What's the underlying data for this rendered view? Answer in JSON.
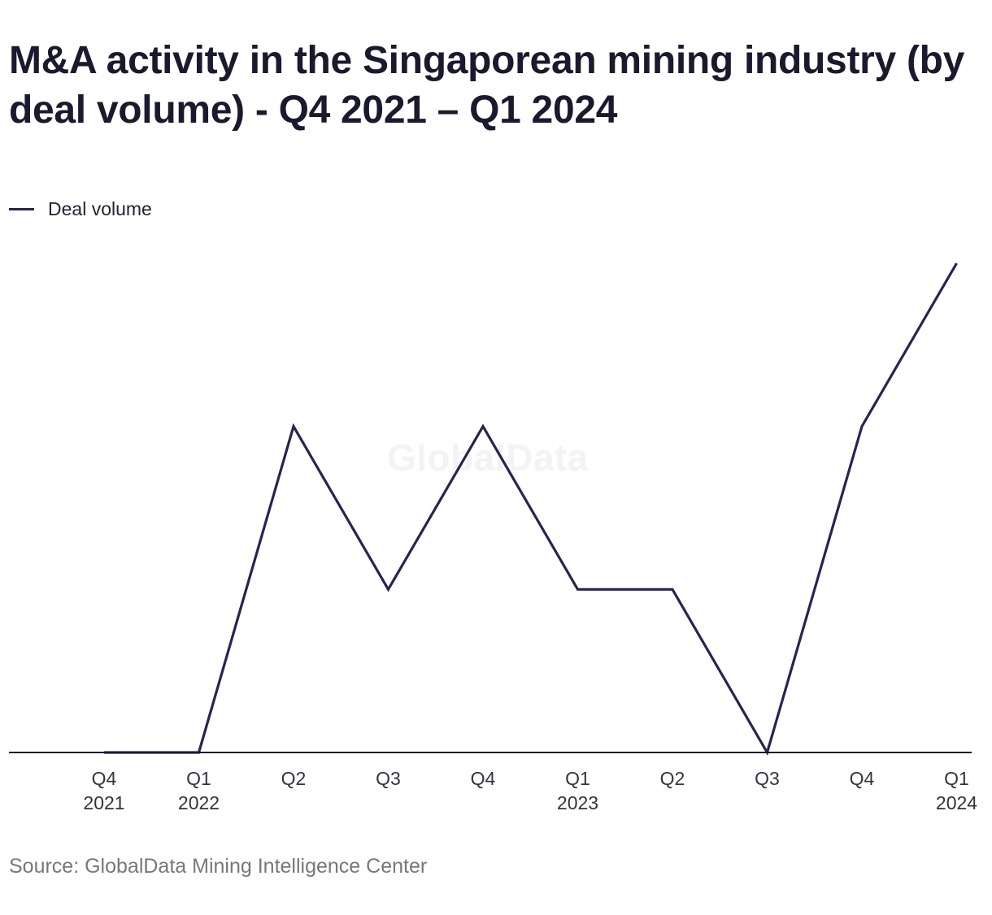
{
  "header": {
    "title": "M&A activity in the Singaporean mining industry (by deal volume) - Q4 2021 – Q1 2024"
  },
  "legend": {
    "label": "Deal volume"
  },
  "watermark": {
    "text": "GlobalData"
  },
  "footer": {
    "source": "Source: GlobalData Mining Intelligence Center"
  },
  "colors": {
    "series": "#2d2150",
    "axis": "#1b1b2f",
    "tick_label": "#333340"
  },
  "chart_data": {
    "type": "line",
    "title": "M&A activity in the Singaporean mining industry (by deal volume) - Q4 2021 – Q1 2024",
    "xlabel": "",
    "ylabel": "",
    "categories": [
      [
        "Q4",
        "2021"
      ],
      [
        "Q1",
        "2022"
      ],
      [
        "Q2"
      ],
      [
        "Q3"
      ],
      [
        "Q4"
      ],
      [
        "Q1",
        "2023"
      ],
      [
        "Q2"
      ],
      [
        "Q3"
      ],
      [
        "Q4"
      ],
      [
        "Q1",
        "2024"
      ]
    ],
    "series": [
      {
        "name": "Deal volume",
        "values": [
          0,
          0,
          2,
          1,
          2,
          1,
          1,
          0,
          2,
          3
        ]
      }
    ],
    "ylim": [
      0,
      3
    ],
    "grid": false,
    "y_axis_labels_shown": false,
    "legend_position": "top-left"
  }
}
